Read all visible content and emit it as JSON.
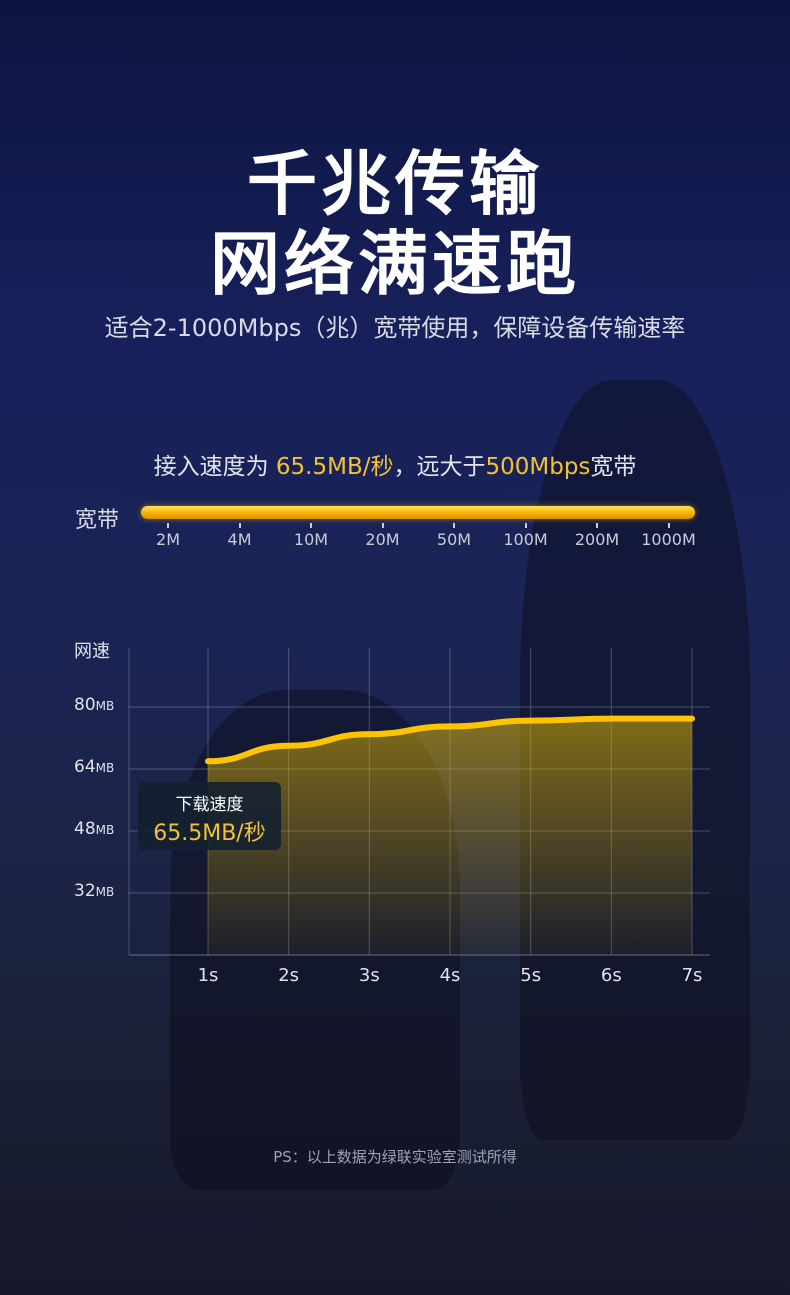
{
  "header": {
    "title_line1": "千兆传输",
    "title_line2": "网络满速跑",
    "subtitle": "适合2-1000Mbps（兆）宽带使用，保障设备传输速率"
  },
  "access": {
    "prefix": "接入速度为 ",
    "speed": "65.5MB/秒",
    "middle": "，远大于",
    "bandwidth": "500Mbps",
    "suffix": "宽带"
  },
  "bandwidth_bar": {
    "label": "宽带",
    "ticks": [
      "2M",
      "4M",
      "10M",
      "20M",
      "50M",
      "100M",
      "200M",
      "1000M"
    ],
    "fill_color": "#f7b800"
  },
  "chart_data": {
    "type": "area",
    "ylabel": "网速",
    "y_ticks": [
      {
        "value": "80",
        "unit": "MB"
      },
      {
        "value": "64",
        "unit": "MB"
      },
      {
        "value": "48",
        "unit": "MB"
      },
      {
        "value": "32",
        "unit": "MB"
      }
    ],
    "ylim": [
      16,
      96
    ],
    "x": [
      "1s",
      "2s",
      "3s",
      "4s",
      "5s",
      "6s",
      "7s"
    ],
    "values": [
      66,
      70,
      73,
      75,
      76.5,
      77,
      77
    ],
    "grid": true,
    "line_color": "#ffc400",
    "tooltip": {
      "label": "下载速度",
      "value": "65.5MB/秒"
    }
  },
  "footer": {
    "note": "PS：以上数据为绿联实验室测试所得"
  }
}
